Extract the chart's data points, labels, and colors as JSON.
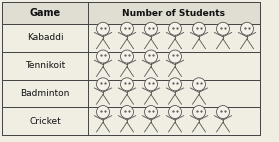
{
  "games": [
    "Kabaddi",
    "Tennikoit",
    "Badminton",
    "Cricket"
  ],
  "counts": [
    7,
    4,
    5,
    6
  ],
  "header_game": "Game",
  "header_students": "Number of Students",
  "table_bg": "#f0ede3",
  "header_bg": "#e0ddd3",
  "border_color": "#444444",
  "text_color": "#111111",
  "figure_color": "#555555",
  "figure_size": [
    2.79,
    1.42
  ],
  "dpi": 100
}
